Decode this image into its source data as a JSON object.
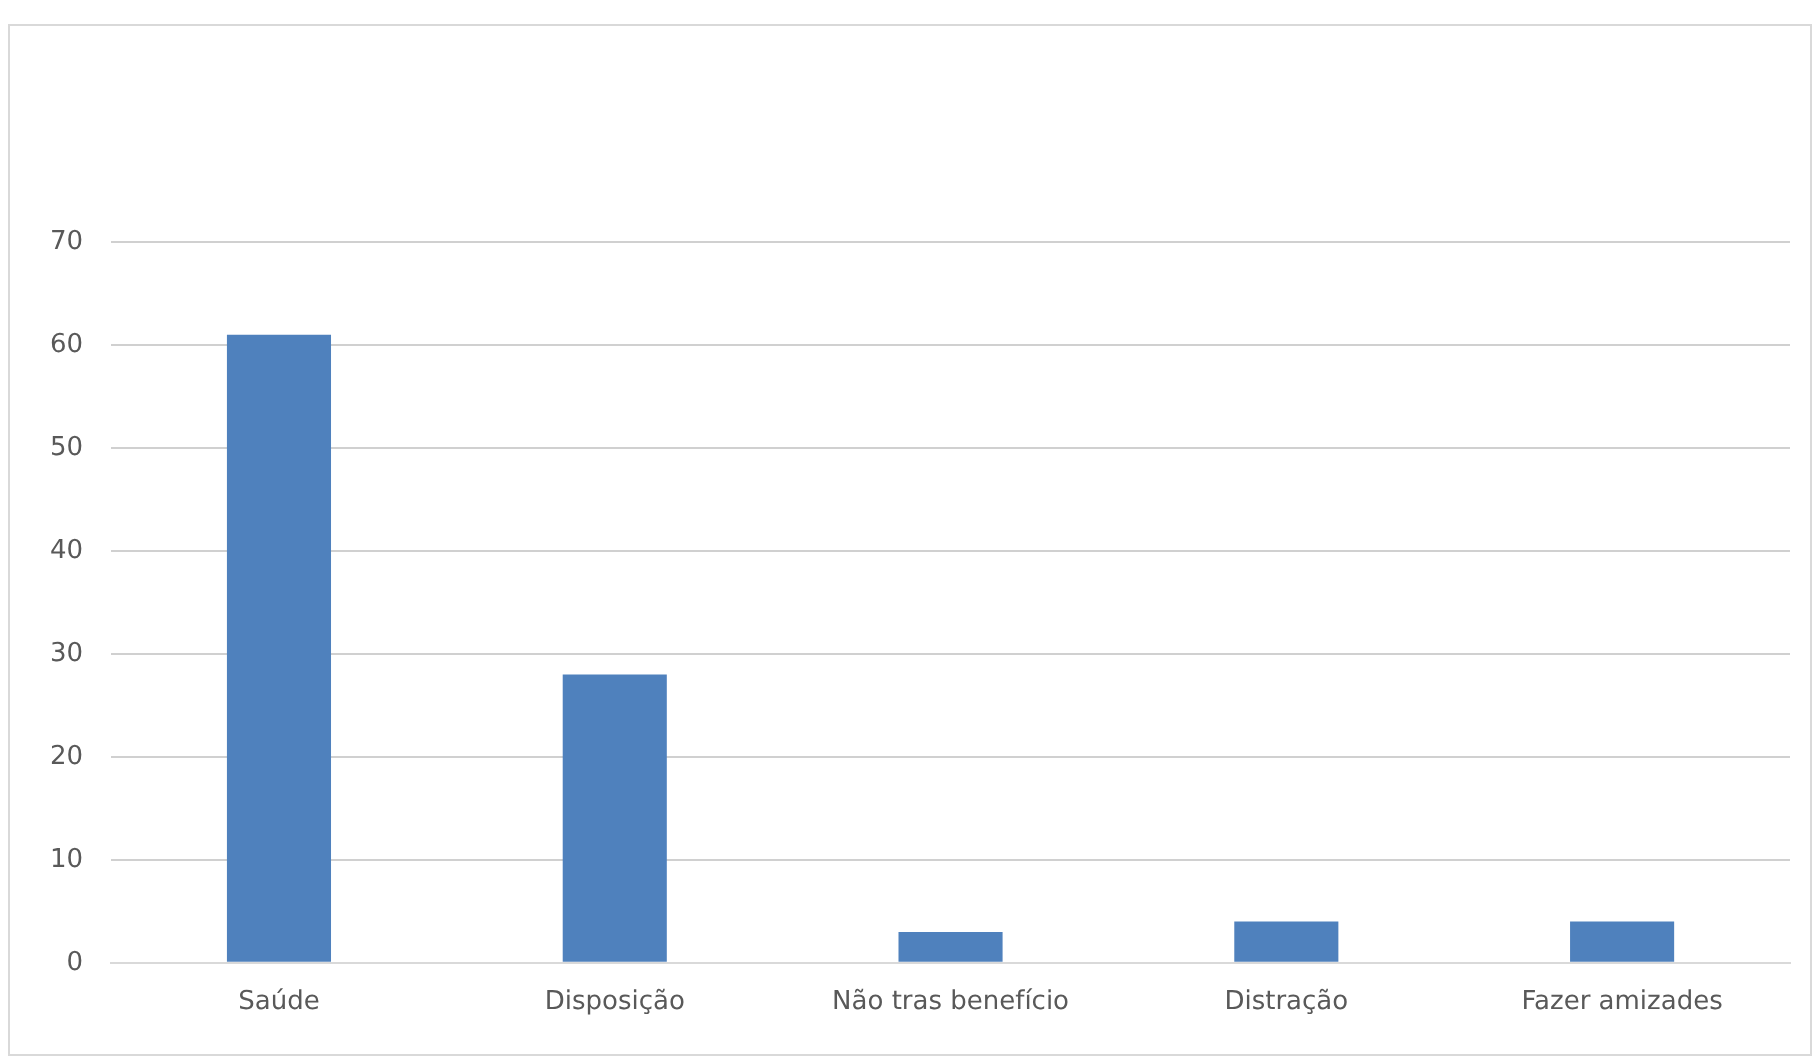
{
  "chart_data": {
    "type": "bar",
    "categories": [
      "Saúde",
      "Disposição",
      "Não tras benefício",
      "Distração",
      "Fazer amizades"
    ],
    "values": [
      61,
      28,
      3,
      4,
      4
    ],
    "color": "#4f81bd",
    "ylim": [
      0,
      70
    ],
    "yticks": [
      0,
      10,
      20,
      30,
      40,
      50,
      60,
      70
    ],
    "grid": "y",
    "legend": false
  }
}
